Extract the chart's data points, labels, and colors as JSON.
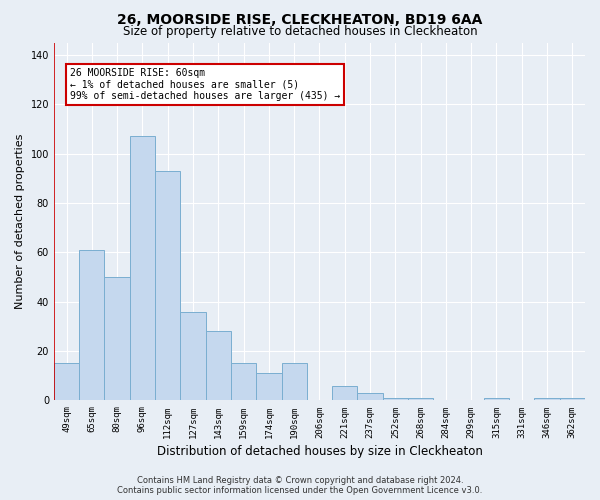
{
  "title1": "26, MOORSIDE RISE, CLECKHEATON, BD19 6AA",
  "title2": "Size of property relative to detached houses in Cleckheaton",
  "xlabel": "Distribution of detached houses by size in Cleckheaton",
  "ylabel": "Number of detached properties",
  "categories": [
    "49sqm",
    "65sqm",
    "80sqm",
    "96sqm",
    "112sqm",
    "127sqm",
    "143sqm",
    "159sqm",
    "174sqm",
    "190sqm",
    "206sqm",
    "221sqm",
    "237sqm",
    "252sqm",
    "268sqm",
    "284sqm",
    "299sqm",
    "315sqm",
    "331sqm",
    "346sqm",
    "362sqm"
  ],
  "values": [
    15,
    61,
    50,
    107,
    93,
    36,
    28,
    15,
    11,
    15,
    0,
    6,
    3,
    1,
    1,
    0,
    0,
    1,
    0,
    1,
    1
  ],
  "bar_color": "#c5d8ee",
  "bar_edge_color": "#7aaed0",
  "highlight_line_color": "#cc0000",
  "ylim": [
    0,
    145
  ],
  "yticks": [
    0,
    20,
    40,
    60,
    80,
    100,
    120,
    140
  ],
  "annotation_title": "26 MOORSIDE RISE: 60sqm",
  "annotation_line1": "← 1% of detached houses are smaller (5)",
  "annotation_line2": "99% of semi-detached houses are larger (435) →",
  "annotation_box_color": "#ffffff",
  "annotation_box_edge_color": "#cc0000",
  "footer1": "Contains HM Land Registry data © Crown copyright and database right 2024.",
  "footer2": "Contains public sector information licensed under the Open Government Licence v3.0.",
  "bg_color": "#e8eef5",
  "plot_bg_color": "#e8eef5",
  "grid_color": "#ffffff",
  "title1_fontsize": 10,
  "title2_fontsize": 8.5,
  "xlabel_fontsize": 8.5,
  "ylabel_fontsize": 8,
  "tick_fontsize": 6.5,
  "footer_fontsize": 6,
  "annotation_fontsize": 7
}
